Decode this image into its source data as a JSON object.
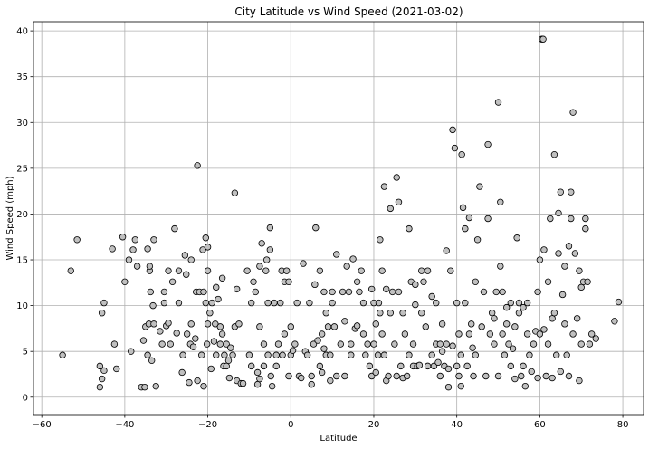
{
  "chart_data": {
    "type": "scatter",
    "title": "City Latitude vs Wind Speed (2021-03-02)",
    "xlabel": "Latitude",
    "ylabel": "Wind Speed (mph)",
    "xlim": [
      -62,
      85
    ],
    "ylim": [
      -1.9,
      41
    ],
    "xticks": [
      -60,
      -40,
      -20,
      0,
      20,
      40,
      60,
      80
    ],
    "yticks": [
      0,
      5,
      10,
      15,
      20,
      25,
      30,
      35,
      40
    ],
    "grid": true,
    "marker_fill": "#c0c0c0",
    "marker_edge": "#000000",
    "points": [
      [
        -55,
        4.6
      ],
      [
        -53,
        13.8
      ],
      [
        -51.5,
        17.2
      ],
      [
        -46,
        1.1
      ],
      [
        -46,
        3.4
      ],
      [
        -45.5,
        2
      ],
      [
        -45.5,
        9.2
      ],
      [
        -45,
        2.9
      ],
      [
        -45,
        10.3
      ],
      [
        -43,
        16.2
      ],
      [
        -42.5,
        5.8
      ],
      [
        -42,
        3.1
      ],
      [
        -40.5,
        17.5
      ],
      [
        -40,
        12.6
      ],
      [
        -39,
        15
      ],
      [
        -38.5,
        5
      ],
      [
        -38,
        16.1
      ],
      [
        -37.5,
        17.2
      ],
      [
        -37,
        14.3
      ],
      [
        -36,
        1.1
      ],
      [
        -35.5,
        6.2
      ],
      [
        -35.2,
        1.1
      ],
      [
        -35,
        7.7
      ],
      [
        -34.5,
        4.6
      ],
      [
        -34.5,
        16.2
      ],
      [
        -34.2,
        8
      ],
      [
        -34,
        13.8
      ],
      [
        -34,
        14.3
      ],
      [
        -33.8,
        11.5
      ],
      [
        -33.5,
        4
      ],
      [
        -33.2,
        10
      ],
      [
        -33,
        17.2
      ],
      [
        -33,
        8
      ],
      [
        -32.5,
        1.2
      ],
      [
        -31.5,
        7.2
      ],
      [
        -31,
        5.8
      ],
      [
        -30.5,
        11.5
      ],
      [
        -30.5,
        10.3
      ],
      [
        -30,
        7.8
      ],
      [
        -29.5,
        13.8
      ],
      [
        -29.5,
        8.1
      ],
      [
        -29,
        5.8
      ],
      [
        -28.5,
        12.6
      ],
      [
        -28,
        18.4
      ],
      [
        -27.5,
        7
      ],
      [
        -27,
        10.3
      ],
      [
        -27,
        13.8
      ],
      [
        -26.2,
        2.7
      ],
      [
        -26,
        4.6
      ],
      [
        -25.5,
        15.5
      ],
      [
        -25.2,
        13.4
      ],
      [
        -25,
        6.9
      ],
      [
        -24.5,
        1.6
      ],
      [
        -24.2,
        5.8
      ],
      [
        -24,
        8
      ],
      [
        -24,
        15
      ],
      [
        -23.5,
        5.5
      ],
      [
        -23,
        6.4
      ],
      [
        -22.8,
        11.5
      ],
      [
        -22.5,
        1.8
      ],
      [
        -22.5,
        25.3
      ],
      [
        -22,
        11.5
      ],
      [
        -21.5,
        4.6
      ],
      [
        -21.2,
        16.1
      ],
      [
        -21,
        1.2
      ],
      [
        -21,
        11.5
      ],
      [
        -20.5,
        17.4
      ],
      [
        -20.5,
        10.3
      ],
      [
        -20.2,
        5.8
      ],
      [
        -20,
        8
      ],
      [
        -20,
        13.8
      ],
      [
        -20,
        16.4
      ],
      [
        -19.5,
        9.2
      ],
      [
        -19.2,
        3.1
      ],
      [
        -19,
        10.3
      ],
      [
        -18.5,
        6.1
      ],
      [
        -18.2,
        8
      ],
      [
        -18,
        4.6
      ],
      [
        -18,
        12
      ],
      [
        -17.5,
        10.7
      ],
      [
        -17,
        7.7
      ],
      [
        -17,
        5.8
      ],
      [
        -16.5,
        13
      ],
      [
        -16.5,
        6.9
      ],
      [
        -16.2,
        3.4
      ],
      [
        -16,
        4.6
      ],
      [
        -15.5,
        5.8
      ],
      [
        -15.5,
        3.4
      ],
      [
        -15,
        4
      ],
      [
        -14.8,
        2.1
      ],
      [
        -14.5,
        5.4
      ],
      [
        -14,
        4.6
      ],
      [
        -13.5,
        7.7
      ],
      [
        -13.5,
        22.3
      ],
      [
        -13,
        11.8
      ],
      [
        -13,
        1.8
      ],
      [
        -12.5,
        8
      ],
      [
        -12,
        1.5
      ],
      [
        -11.5,
        1.5
      ],
      [
        -10.5,
        13.8
      ],
      [
        -10,
        4.6
      ],
      [
        -9.5,
        3.4
      ],
      [
        -9.5,
        10.3
      ],
      [
        -9,
        12.6
      ],
      [
        -8.5,
        11.5
      ],
      [
        -8,
        1.4
      ],
      [
        -8,
        2.7
      ],
      [
        -7.5,
        2
      ],
      [
        -7.5,
        7.7
      ],
      [
        -7.5,
        14.3
      ],
      [
        -7,
        16.8
      ],
      [
        -6.5,
        5.8
      ],
      [
        -6.5,
        3.4
      ],
      [
        -6,
        13.8
      ],
      [
        -5.8,
        15
      ],
      [
        -5.5,
        4.6
      ],
      [
        -5.5,
        10.3
      ],
      [
        -5,
        16.1
      ],
      [
        -5,
        18.5
      ],
      [
        -4.8,
        2.3
      ],
      [
        -4.5,
        1.2
      ],
      [
        -4,
        10.3
      ],
      [
        -3.5,
        4.6
      ],
      [
        -3.5,
        3.4
      ],
      [
        -3,
        5.8
      ],
      [
        -2.5,
        10.3
      ],
      [
        -2.2,
        13.8
      ],
      [
        -2,
        4.6
      ],
      [
        -1.5,
        6.9
      ],
      [
        -1.5,
        12.6
      ],
      [
        -1,
        13.8
      ],
      [
        -0.5,
        2.3
      ],
      [
        -0.5,
        12.6
      ],
      [
        0,
        7.7
      ],
      [
        0,
        4.6
      ],
      [
        0.5,
        5.1
      ],
      [
        1,
        5.8
      ],
      [
        1.5,
        10.3
      ],
      [
        2,
        2.3
      ],
      [
        2.5,
        2.1
      ],
      [
        3,
        14.6
      ],
      [
        3.5,
        5
      ],
      [
        4,
        4.6
      ],
      [
        4.5,
        10.3
      ],
      [
        5,
        1.4
      ],
      [
        5,
        2.3
      ],
      [
        5.5,
        5.8
      ],
      [
        5.8,
        12.3
      ],
      [
        6,
        18.5
      ],
      [
        6.5,
        6.2
      ],
      [
        7,
        3.4
      ],
      [
        7,
        13.8
      ],
      [
        7.5,
        6.9
      ],
      [
        7.5,
        2.7
      ],
      [
        8,
        5.3
      ],
      [
        8,
        11.5
      ],
      [
        8.5,
        9.2
      ],
      [
        8.5,
        4.6
      ],
      [
        9,
        7.7
      ],
      [
        9.5,
        1.8
      ],
      [
        9.5,
        4.6
      ],
      [
        10,
        10.3
      ],
      [
        10,
        11.5
      ],
      [
        10.5,
        7.7
      ],
      [
        11,
        2.3
      ],
      [
        11,
        15.6
      ],
      [
        12,
        5.8
      ],
      [
        12.5,
        11.5
      ],
      [
        13,
        8.3
      ],
      [
        13,
        2.3
      ],
      [
        13.5,
        14.3
      ],
      [
        14,
        11.5
      ],
      [
        14.5,
        5.8
      ],
      [
        14.5,
        4.6
      ],
      [
        15,
        15.1
      ],
      [
        15.5,
        7.5
      ],
      [
        16,
        7.8
      ],
      [
        16,
        12.6
      ],
      [
        16.5,
        11.5
      ],
      [
        17,
        13.8
      ],
      [
        17.5,
        10.3
      ],
      [
        17.5,
        6.9
      ],
      [
        18,
        4.6
      ],
      [
        18.5,
        5.8
      ],
      [
        19,
        3.4
      ],
      [
        19.5,
        11.8
      ],
      [
        19.5,
        2.3
      ],
      [
        20,
        5.8
      ],
      [
        20,
        10.3
      ],
      [
        20.5,
        8
      ],
      [
        20.5,
        2.7
      ],
      [
        21,
        4.6
      ],
      [
        21.2,
        10.3
      ],
      [
        21.5,
        9.2
      ],
      [
        21.5,
        17.2
      ],
      [
        22,
        6.9
      ],
      [
        22,
        13.8
      ],
      [
        22.5,
        4.6
      ],
      [
        22.5,
        23
      ],
      [
        23,
        1.8
      ],
      [
        23,
        11.8
      ],
      [
        23.5,
        2.3
      ],
      [
        24,
        9.2
      ],
      [
        24,
        20.6
      ],
      [
        24.5,
        11.5
      ],
      [
        25,
        5.8
      ],
      [
        25.5,
        2.3
      ],
      [
        25.5,
        24
      ],
      [
        26,
        21.3
      ],
      [
        26,
        11.5
      ],
      [
        26.5,
        3.4
      ],
      [
        27,
        2.1
      ],
      [
        27,
        9.2
      ],
      [
        27.5,
        6.9
      ],
      [
        28,
        2.3
      ],
      [
        28.5,
        4.6
      ],
      [
        28.5,
        18.4
      ],
      [
        29,
        12.6
      ],
      [
        29.5,
        3.4
      ],
      [
        29.5,
        5.8
      ],
      [
        30,
        10.1
      ],
      [
        30,
        12.3
      ],
      [
        30.5,
        3.4
      ],
      [
        31,
        3.5
      ],
      [
        31.5,
        13.8
      ],
      [
        31.5,
        9.2
      ],
      [
        32,
        12.6
      ],
      [
        32.5,
        7.7
      ],
      [
        33,
        3.4
      ],
      [
        33,
        13.8
      ],
      [
        34,
        4.6
      ],
      [
        34,
        11
      ],
      [
        34.5,
        3.4
      ],
      [
        35,
        10.3
      ],
      [
        35,
        5.8
      ],
      [
        35.5,
        3.8
      ],
      [
        36,
        5.8
      ],
      [
        36,
        2.3
      ],
      [
        36.5,
        8
      ],
      [
        36.5,
        5
      ],
      [
        37,
        3.4
      ],
      [
        37.5,
        16
      ],
      [
        37.5,
        5.8
      ],
      [
        38,
        1.1
      ],
      [
        38,
        3.1
      ],
      [
        38.5,
        13.8
      ],
      [
        39,
        29.2
      ],
      [
        39,
        5.6
      ],
      [
        39.5,
        27.2
      ],
      [
        40,
        10.3
      ],
      [
        40,
        3.4
      ],
      [
        40.5,
        6.9
      ],
      [
        40.5,
        2.3
      ],
      [
        41,
        1.2
      ],
      [
        41,
        4.6
      ],
      [
        41.2,
        26.5
      ],
      [
        41.5,
        20.7
      ],
      [
        42,
        10.3
      ],
      [
        42,
        18.4
      ],
      [
        42.5,
        3.4
      ],
      [
        43,
        6.9
      ],
      [
        43,
        19.6
      ],
      [
        43.5,
        8
      ],
      [
        43.8,
        5.4
      ],
      [
        44,
        2.3
      ],
      [
        44.5,
        12.6
      ],
      [
        44.5,
        4.6
      ],
      [
        45,
        17.2
      ],
      [
        45.5,
        23
      ],
      [
        46,
        7.7
      ],
      [
        46.5,
        11.5
      ],
      [
        47,
        2.3
      ],
      [
        47.5,
        27.6
      ],
      [
        47.5,
        19.5
      ],
      [
        48,
        6.9
      ],
      [
        48.5,
        9.2
      ],
      [
        49,
        8.6
      ],
      [
        49,
        5.8
      ],
      [
        49.5,
        11.5
      ],
      [
        50,
        32.2
      ],
      [
        50,
        2.3
      ],
      [
        50.5,
        21.3
      ],
      [
        50.5,
        14.3
      ],
      [
        51,
        6.9
      ],
      [
        51,
        11.5
      ],
      [
        51.5,
        4.6
      ],
      [
        52,
        8
      ],
      [
        52,
        9.8
      ],
      [
        52.5,
        5.8
      ],
      [
        53,
        3.4
      ],
      [
        53,
        10.3
      ],
      [
        53.5,
        5.3
      ],
      [
        54,
        7.7
      ],
      [
        54,
        2
      ],
      [
        54.5,
        17.4
      ],
      [
        55,
        9.2
      ],
      [
        55,
        10.3
      ],
      [
        55.5,
        2.3
      ],
      [
        56,
        9.8
      ],
      [
        56,
        3.4
      ],
      [
        56.5,
        1.2
      ],
      [
        57,
        10.3
      ],
      [
        57,
        6.9
      ],
      [
        57.5,
        4.6
      ],
      [
        58,
        2.8
      ],
      [
        58.5,
        5.8
      ],
      [
        59,
        7.2
      ],
      [
        59.5,
        11.5
      ],
      [
        59.5,
        2.1
      ],
      [
        60,
        15
      ],
      [
        60,
        6.9
      ],
      [
        60.5,
        39.1
      ],
      [
        60.8,
        39.1
      ],
      [
        61,
        7.4
      ],
      [
        61,
        16.1
      ],
      [
        61.5,
        2.3
      ],
      [
        62,
        5.8
      ],
      [
        62,
        12.6
      ],
      [
        62.5,
        19.5
      ],
      [
        63,
        8.6
      ],
      [
        63,
        2.1
      ],
      [
        63.5,
        26.5
      ],
      [
        63.5,
        9.2
      ],
      [
        64,
        4.6
      ],
      [
        64.5,
        15.7
      ],
      [
        64.5,
        20.1
      ],
      [
        65,
        2.8
      ],
      [
        65,
        22.4
      ],
      [
        65.5,
        11.2
      ],
      [
        66,
        8
      ],
      [
        66,
        14.3
      ],
      [
        66.5,
        4.6
      ],
      [
        67,
        2.3
      ],
      [
        67,
        16.5
      ],
      [
        67.5,
        22.4
      ],
      [
        67.5,
        19.5
      ],
      [
        68,
        31.1
      ],
      [
        68,
        6.9
      ],
      [
        68.5,
        15.7
      ],
      [
        69,
        8.6
      ],
      [
        69.5,
        13.8
      ],
      [
        69.5,
        1.8
      ],
      [
        70,
        12
      ],
      [
        70,
        5.8
      ],
      [
        70.5,
        12.6
      ],
      [
        71,
        19.5
      ],
      [
        71,
        18.4
      ],
      [
        71.5,
        12.6
      ],
      [
        72,
        5.8
      ],
      [
        72.5,
        6.9
      ],
      [
        73.5,
        6.4
      ],
      [
        78,
        8.3
      ],
      [
        79,
        10.4
      ]
    ]
  }
}
